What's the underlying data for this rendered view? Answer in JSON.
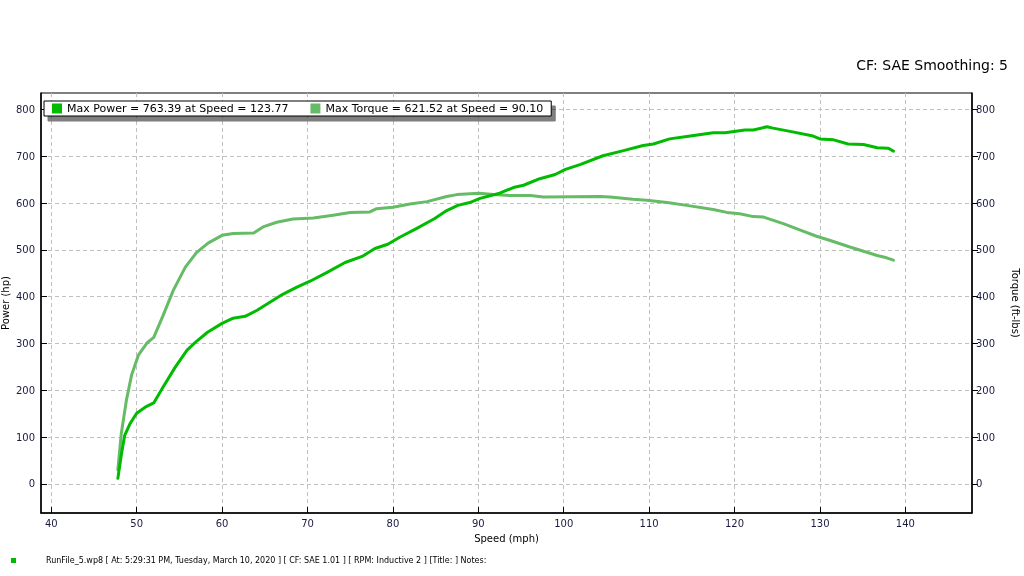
{
  "chart_data": {
    "type": "line",
    "xlabel": "Speed (mph)",
    "ylabel": "Power (hp)",
    "y2label": "Torque (ft-lbs)",
    "annotations": [
      "CF: SAE Smoothing: 5",
      "RunFile_5.wp8 [ At: 5:29:31 PM, Tuesday, March 10, 2020 ] [ CF: SAE 1.01 ] [ RPM: Inductive 2 ] [Title: ] Notes:"
    ],
    "xlim": [
      38.8,
      147.8
    ],
    "xticks": [
      40,
      50,
      60,
      70,
      80,
      90,
      100,
      110,
      120,
      130,
      140
    ],
    "ylim": [
      -62,
      835
    ],
    "yticks": [
      0,
      100,
      200,
      300,
      400,
      500,
      600,
      700,
      800
    ],
    "y2lim": [
      -62,
      835
    ],
    "y2ticks": [
      0,
      100,
      200,
      300,
      400,
      500,
      600,
      700,
      800
    ],
    "grid": true,
    "legend": "top left",
    "marker": "none",
    "series": [
      {
        "name": "Max Power = 763.39 at Speed = 123.77",
        "color": "#00bb00",
        "x": [
          47.8,
          48.2,
          48.6,
          49.2,
          50.0,
          51.0,
          52.0,
          53.1,
          54.5,
          55.9,
          56.9,
          58.3,
          60.0,
          61.3,
          62.7,
          64.1,
          65.6,
          67.1,
          68.7,
          70.3,
          72.3,
          74.4,
          76.4,
          77.9,
          79.4,
          80.8,
          82.8,
          84.9,
          86.3,
          87.6,
          89.0,
          90.2,
          92.5,
          94.1,
          95.3,
          97.2,
          99.0,
          100.2,
          101.9,
          104.6,
          107.0,
          109.3,
          110.5,
          112.4,
          114.4,
          117.5,
          118.9,
          121.2,
          122.2,
          123.8,
          124.5,
          126.5,
          129.2,
          130.0,
          131.6,
          133.3,
          135.1,
          136.7,
          138.0,
          138.6
        ],
        "values": [
          12,
          62,
          104,
          128,
          151,
          164,
          173,
          207,
          249,
          286,
          303,
          324,
          343,
          354,
          358,
          371,
          388,
          405,
          420,
          433,
          452,
          473,
          486,
          503,
          512,
          527,
          546,
          567,
          584,
          595,
          601,
          610,
          621,
          633,
          638,
          652,
          661,
          672,
          682,
          701,
          712,
          723,
          726,
          737,
          742,
          750,
          750,
          756,
          756,
          763,
          760,
          753,
          743,
          737,
          735,
          726,
          725,
          718,
          717,
          711
        ]
      },
      {
        "name": "Max Torque = 621.52 at Speed = 90.10",
        "color": "#66bb66",
        "axis": "y2",
        "x": [
          47.8,
          48.2,
          48.8,
          49.4,
          50.2,
          51.2,
          52.0,
          53.1,
          54.3,
          55.7,
          57.0,
          58.4,
          60.0,
          61.3,
          63.7,
          64.8,
          66.4,
          68.3,
          70.7,
          73.0,
          75.0,
          77.3,
          78.1,
          80.0,
          82.0,
          84.0,
          86.3,
          87.5,
          90.1,
          91.8,
          93.7,
          96.1,
          97.6,
          104.3,
          105.4,
          108.1,
          109.7,
          112.1,
          114.4,
          117.5,
          119.1,
          120.6,
          122.2,
          123.4,
          125.7,
          127.7,
          129.6,
          131.2,
          133.5,
          135.1,
          136.7,
          137.8,
          138.6
        ],
        "values": [
          30,
          108,
          179,
          232,
          275,
          301,
          313,
          360,
          414,
          463,
          494,
          515,
          531,
          535,
          536,
          549,
          559,
          566,
          568,
          574,
          580,
          581,
          588,
          591,
          598,
          603,
          614,
          618,
          621,
          618,
          616,
          616,
          613,
          614,
          613,
          608,
          606,
          601,
          595,
          586,
          580,
          577,
          571,
          570,
          556,
          542,
          529,
          520,
          506,
          497,
          488,
          483,
          478
        ]
      }
    ]
  }
}
